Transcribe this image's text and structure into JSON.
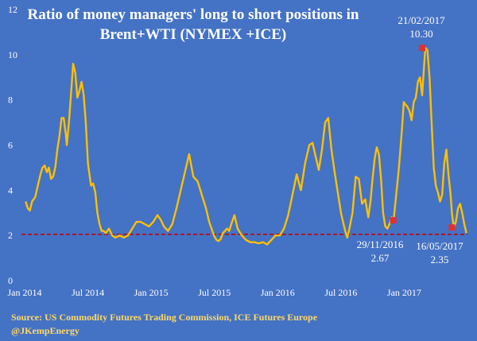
{
  "colors": {
    "background": "#4472c4",
    "line": "#ffc000",
    "threshold": "#c00000",
    "marker": "#e03030",
    "text": "#ffffff",
    "source_text": "#ffd966"
  },
  "chart_data": {
    "type": "line",
    "title": "Ratio of money managers' long to short positions in Brent+WTI (NYMEX +ICE)",
    "title_lines": [
      "Ratio of  money managers' long to short positions in",
      "Brent+WTI (NYMEX +ICE)"
    ],
    "xlabel": "",
    "ylabel": "",
    "ylim": [
      0,
      12
    ],
    "yticks": [
      0,
      2,
      4,
      6,
      8,
      10,
      12
    ],
    "xlim": [
      "2014-01",
      "2017-07"
    ],
    "x_tick_labels": [
      "Jan 2014",
      "Jul 2014",
      "Jan 2015",
      "Jul 2015",
      "Jan 2016",
      "Jul 2016",
      "Jan 2017"
    ],
    "x_tick_months": [
      0,
      6,
      12,
      18,
      24,
      30,
      36
    ],
    "x_end_month": 42,
    "grid": false,
    "legend": "none",
    "reference_line": {
      "y": 2.05,
      "style": "dashed"
    },
    "series": [
      {
        "x": [
          0.1,
          0.3,
          0.5,
          0.7,
          1.0,
          1.3,
          1.5,
          1.7,
          1.9,
          2.1,
          2.3,
          2.5,
          2.7,
          2.9,
          3.1,
          3.3,
          3.5,
          3.7,
          3.9,
          4.0,
          4.2,
          4.4,
          4.6,
          4.8,
          5.0,
          5.2,
          5.4,
          5.6,
          5.8,
          6.0,
          6.3,
          6.5,
          6.7,
          6.9,
          7.1,
          7.3,
          7.5,
          7.7,
          8.0,
          8.3,
          8.6,
          9.0,
          9.4,
          9.8,
          10.2,
          10.6,
          11.0,
          11.4,
          11.8,
          12.2,
          12.6,
          12.9,
          13.2,
          13.6,
          14.0,
          14.4,
          14.8,
          15.2,
          15.6,
          16.0,
          16.4,
          16.8,
          17.2,
          17.5,
          17.8,
          18.0,
          18.2,
          18.4,
          18.6,
          18.8,
          19.0,
          19.2,
          19.4,
          19.6,
          19.9,
          20.2,
          20.6,
          21.0,
          21.4,
          21.8,
          22.2,
          22.6,
          23.0,
          23.4,
          23.8,
          24.2,
          24.6,
          25.0,
          25.4,
          25.8,
          26.2,
          26.6,
          27.0,
          27.3,
          27.6,
          27.9,
          28.2,
          28.5,
          28.8,
          29.1,
          29.4,
          29.7,
          30.0,
          30.2,
          30.4,
          30.6,
          30.8,
          31.1,
          31.4,
          31.7,
          32.0,
          32.3,
          32.6,
          32.8,
          33.0,
          33.2,
          33.4,
          33.6,
          33.8,
          34.0,
          34.2,
          34.4,
          34.6,
          34.8,
          35.0,
          35.2,
          35.5,
          35.8,
          35.96,
          36.1,
          36.3,
          36.5,
          36.7,
          36.9,
          37.1,
          37.3,
          37.5,
          37.7,
          37.8,
          38.0,
          38.2,
          38.4,
          38.6,
          38.8,
          39.0,
          39.2,
          39.4,
          39.6,
          39.8,
          40.0,
          40.2,
          40.4,
          40.52,
          40.7,
          40.9,
          41.1,
          41.3,
          41.5,
          41.7,
          41.9
        ],
        "y": [
          3.5,
          3.2,
          3.1,
          3.5,
          3.7,
          4.3,
          4.7,
          5.0,
          5.1,
          4.8,
          5.0,
          4.5,
          4.6,
          5.0,
          5.8,
          6.4,
          7.2,
          7.2,
          6.5,
          6.0,
          7.0,
          8.3,
          9.6,
          9.2,
          8.1,
          8.4,
          8.8,
          8.2,
          7.0,
          5.2,
          4.2,
          4.3,
          3.9,
          3.0,
          2.5,
          2.2,
          2.2,
          2.1,
          2.3,
          2.0,
          1.9,
          2.0,
          1.9,
          2.0,
          2.3,
          2.6,
          2.6,
          2.5,
          2.4,
          2.6,
          2.9,
          2.7,
          2.4,
          2.2,
          2.5,
          3.2,
          4.0,
          4.8,
          5.6,
          4.6,
          4.4,
          3.8,
          3.2,
          2.6,
          2.2,
          1.95,
          1.8,
          1.75,
          1.85,
          2.1,
          2.2,
          2.3,
          2.2,
          2.5,
          2.9,
          2.3,
          2.0,
          1.8,
          1.7,
          1.7,
          1.65,
          1.7,
          1.6,
          1.8,
          2.0,
          2.0,
          2.3,
          2.9,
          3.8,
          4.7,
          4.0,
          5.2,
          6.0,
          6.1,
          5.5,
          4.9,
          5.8,
          7.0,
          7.2,
          5.8,
          4.8,
          3.9,
          3.0,
          2.6,
          2.2,
          1.9,
          2.3,
          3.0,
          4.6,
          4.5,
          3.4,
          3.6,
          2.8,
          3.5,
          4.5,
          5.4,
          5.9,
          5.6,
          4.5,
          3.0,
          2.4,
          2.3,
          2.5,
          2.8,
          2.7,
          3.6,
          5.0,
          6.8,
          7.9,
          7.8,
          7.7,
          7.5,
          7.1,
          7.9,
          8.1,
          8.8,
          9.0,
          8.2,
          8.9,
          10.3,
          10.2,
          9.0,
          7.0,
          5.0,
          4.2,
          3.9,
          3.5,
          3.8,
          5.2,
          5.8,
          4.7,
          3.8,
          3.0,
          2.35,
          2.6,
          3.2,
          3.4,
          3.0,
          2.5,
          2.1
        ]
      }
    ],
    "highlights": [
      {
        "date": "21/02/2017",
        "month": 37.7,
        "value": 10.3,
        "value_label": "10.30"
      },
      {
        "date": "29/11/2016",
        "month": 34.96,
        "value": 2.67,
        "value_label": "2.67"
      },
      {
        "date": "16/05/2017",
        "month": 40.52,
        "value": 2.35,
        "value_label": "2.35"
      }
    ]
  },
  "footer": {
    "source": "Source: US Commodity Futures Trading Commission, ICE Futures Europe",
    "handle": "@JKempEnergy"
  }
}
